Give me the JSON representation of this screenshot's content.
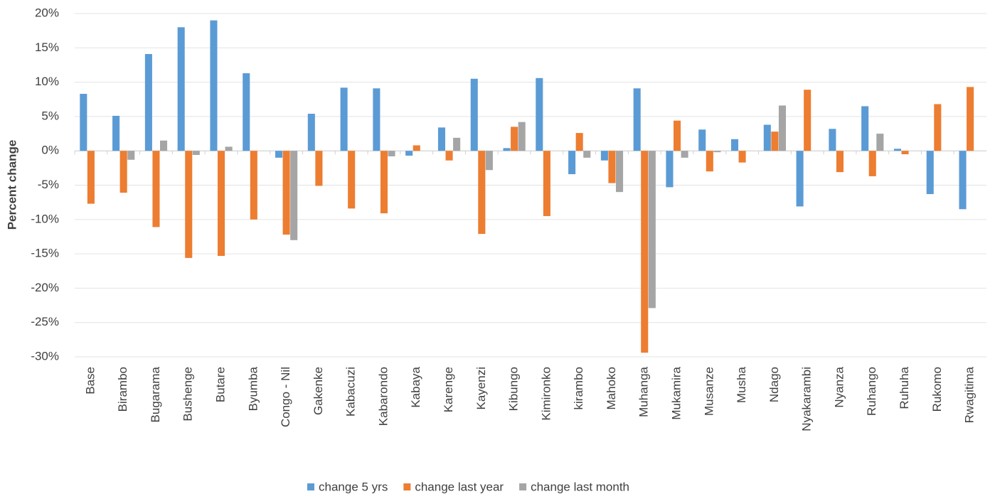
{
  "chart_data": {
    "type": "bar",
    "y_label": "Percent change",
    "categories": [
      "Base",
      "Birambo",
      "Bugarama",
      "Bushenge",
      "Butare",
      "Byumba",
      "Congo - Nil",
      "Gakenke",
      "Kabacuzi",
      "Kabarondo",
      "Kabaya",
      "Karenge",
      "Kayenzi",
      "Kibungo",
      "Kimironko",
      "kirambo",
      "Mahoko",
      "Muhanga",
      "Mukamira",
      "Musanze",
      "Musha",
      "Ndago",
      "Nyakarambi",
      "Nyanza",
      "Ruhango",
      "Ruhuha",
      "Rukomo",
      "Rwagitima"
    ],
    "series": [
      {
        "name": "change 5 yrs",
        "color": "#5b9bd5",
        "values": [
          8.3,
          5.1,
          14.1,
          18,
          19,
          11.3,
          -1,
          5.4,
          9.2,
          9.1,
          -0.7,
          3.4,
          10.5,
          0.4,
          10.6,
          -3.4,
          -1.4,
          9.1,
          -5.3,
          3.1,
          1.7,
          3.8,
          -8.1,
          3.2,
          6.5,
          0.3,
          -6.3,
          -8.5
        ]
      },
      {
        "name": "change last year",
        "color": "#ed7d31",
        "values": [
          -7.7,
          -6.1,
          -11.1,
          -15.6,
          -15.3,
          -10,
          -12.2,
          -5.1,
          -8.4,
          -9.1,
          0.8,
          -1.4,
          -12.1,
          3.5,
          -9.5,
          2.6,
          -4.7,
          -29.4,
          4.4,
          -3,
          -1.7,
          2.8,
          8.9,
          -3.1,
          -3.7,
          -0.5,
          6.8,
          9.3
        ]
      },
      {
        "name": "change last month",
        "color": "#a5a5a5",
        "values": [
          0,
          -1.3,
          1.5,
          -0.6,
          0.6,
          0,
          -13,
          0,
          0,
          -0.8,
          0,
          1.9,
          -2.8,
          4.2,
          0,
          -1,
          -6,
          -22.9,
          -1,
          -0.2,
          0,
          6.6,
          0,
          0,
          2.5,
          0,
          0,
          0
        ]
      }
    ],
    "ylim": [
      -30,
      20
    ],
    "yticks": [
      {
        "value": -30,
        "label": "-30%"
      },
      {
        "value": -25,
        "label": "-25%"
      },
      {
        "value": -20,
        "label": "-20%"
      },
      {
        "value": -15,
        "label": "-15%"
      },
      {
        "value": -10,
        "label": "-10%"
      },
      {
        "value": -5,
        "label": "-5%"
      },
      {
        "value": 0,
        "label": "0%"
      },
      {
        "value": 5,
        "label": "5%"
      },
      {
        "value": 10,
        "label": "10%"
      },
      {
        "value": 15,
        "label": "15%"
      },
      {
        "value": 20,
        "label": "20%"
      }
    ],
    "grid": true,
    "legend": "bottom"
  }
}
